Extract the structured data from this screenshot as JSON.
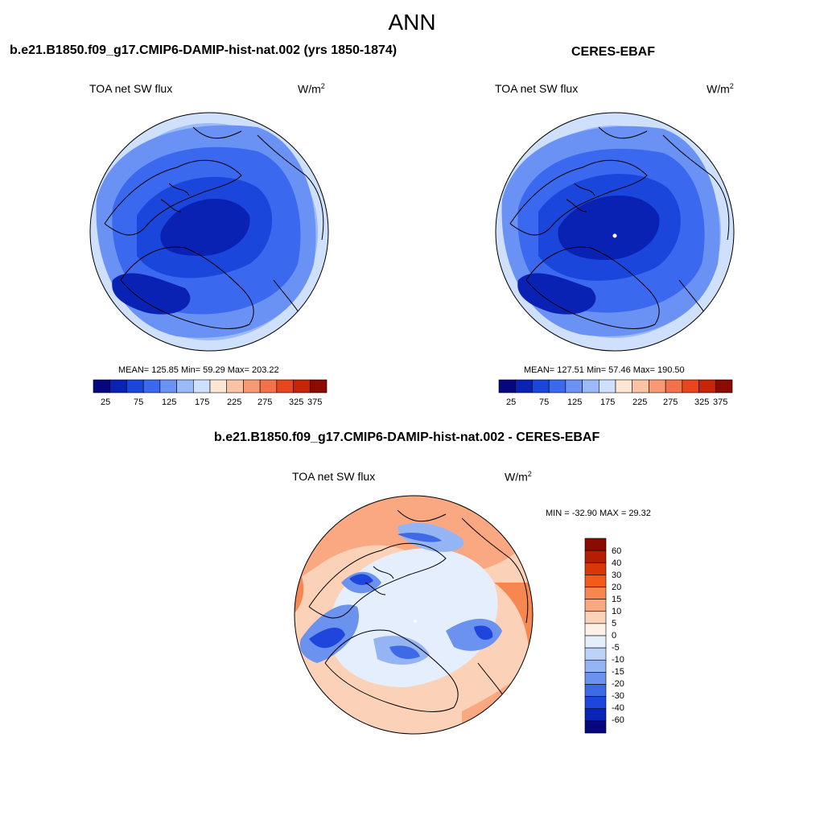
{
  "main_title": "ANN",
  "panels": [
    {
      "title": "b.e21.B1850.f09_g17.CMIP6-DAMIP-hist-nat.002 (yrs 1850-1874)",
      "variable": "TOA net SW flux",
      "units": "W/m",
      "units_sup": "2",
      "stats": "MEAN= 125.85  Min=  59.29  Max= 203.22",
      "colorbar_labels": [
        "25",
        "75",
        "125",
        "175",
        "225",
        "275",
        "325",
        "375"
      ]
    },
    {
      "title": "CERES-EBAF",
      "variable": "TOA net SW flux",
      "units": "W/m",
      "units_sup": "2",
      "stats": "MEAN= 127.51  Min=  57.46  Max= 190.50",
      "colorbar_labels": [
        "25",
        "75",
        "125",
        "175",
        "225",
        "275",
        "325",
        "375"
      ]
    },
    {
      "title": "b.e21.B1850.f09_g17.CMIP6-DAMIP-hist-nat.002 - CERES-EBAF",
      "variable": "TOA net SW flux",
      "units": "W/m",
      "units_sup": "2",
      "stats": "MIN = -32.90 MAX =  29.32",
      "colorbar_labels": [
        "60",
        "40",
        "30",
        "20",
        "15",
        "10",
        "5",
        "0",
        "-5",
        "-10",
        "-15",
        "-20",
        "-30",
        "-40",
        "-60"
      ]
    }
  ],
  "colors": {
    "abs_scale": [
      "#08087e",
      "#0a22b4",
      "#1a46dc",
      "#3a68ee",
      "#6a92f4",
      "#9cbaf8",
      "#cfe0fc",
      "#fde7d4",
      "#fbc2a4",
      "#f89a74",
      "#f4724a",
      "#e8461e",
      "#c82408",
      "#8a0c00"
    ],
    "diff_scale": [
      "#8a0c00",
      "#b41e02",
      "#d6380a",
      "#f45a1c",
      "#f78650",
      "#f9a882",
      "#fbd2b8",
      "#fdf0e6",
      "#e4eefc",
      "#bcd2f8",
      "#94b4f4",
      "#6a92ee",
      "#3f6ae6",
      "#1e46dc",
      "#0a24b8",
      "#08087e"
    ]
  }
}
